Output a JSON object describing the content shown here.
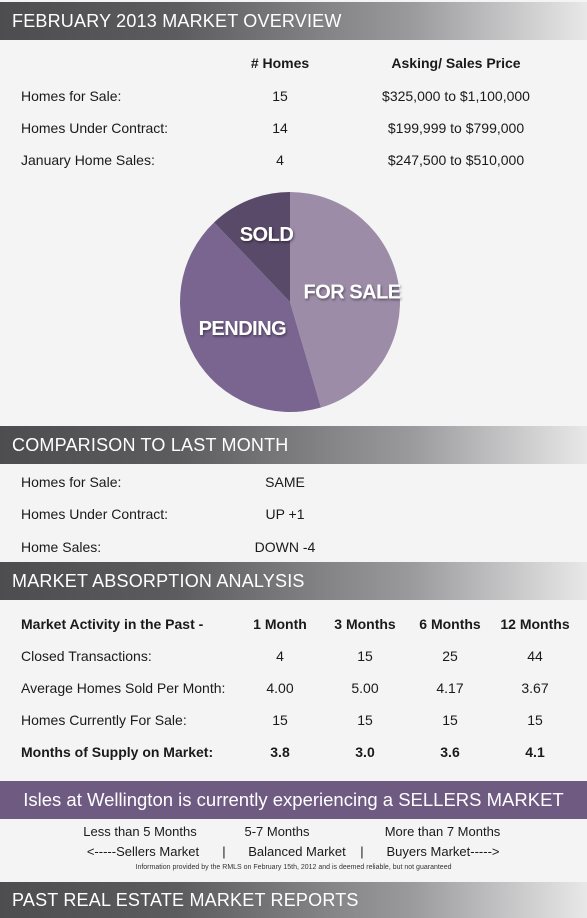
{
  "overview": {
    "title": "FEBRUARY 2013 MARKET OVERVIEW",
    "col_homes": "# Homes",
    "col_price": "Asking/ Sales Price",
    "rows": [
      {
        "label": "Homes for Sale:",
        "homes": "15",
        "price": "$325,000 to $1,100,000"
      },
      {
        "label": "Homes Under Contract:",
        "homes": "14",
        "price": "$199,999 to $799,000"
      },
      {
        "label": "January Home Sales:",
        "homes": "4",
        "price": "$247,500 to $510,000"
      }
    ]
  },
  "chart_data": {
    "type": "pie",
    "slices": [
      {
        "label": "FOR SALE",
        "value": 15,
        "color": "#9c8ca8"
      },
      {
        "label": "PENDING",
        "value": 14,
        "color": "#7a6590"
      },
      {
        "label": "SOLD",
        "value": 4,
        "color": "#5a4a6a"
      }
    ]
  },
  "comparison": {
    "title": "COMPARISON TO LAST MONTH",
    "rows": [
      {
        "label": "Homes for Sale:",
        "value": "SAME"
      },
      {
        "label": "Homes Under Contract:",
        "value": "UP +1"
      },
      {
        "label": "Home Sales:",
        "value": "DOWN -4"
      }
    ]
  },
  "absorption": {
    "title": "MARKET ABSORPTION ANALYSIS",
    "header": [
      "Market Activity in the Past -",
      "1 Month",
      "3 Months",
      "6 Months",
      "12 Months"
    ],
    "rows": [
      [
        "Closed Transactions:",
        "4",
        "15",
        "25",
        "44"
      ],
      [
        "Average Homes Sold Per Month:",
        "4.00",
        "5.00",
        "4.17",
        "3.67"
      ],
      [
        "Homes Currently For Sale:",
        "15",
        "15",
        "15",
        "15"
      ],
      [
        "Months of Supply on Market:",
        "3.8",
        "3.0",
        "3.6",
        "4.1"
      ]
    ]
  },
  "banner": "Isles at Wellington is currently experiencing a SELLERS MARKET",
  "legend": {
    "top": [
      "Less than 5 Months",
      "5-7 Months",
      "More than 7 Months"
    ],
    "bottom": [
      "<-----Sellers Market",
      "|",
      "Balanced Market",
      "|",
      "Buyers Market----->"
    ]
  },
  "disclaimer": "Information provided by the RMLS on February 15th, 2012 and is deemed reliable, but not guaranteed",
  "past_reports": "PAST REAL ESTATE MARKET REPORTS"
}
